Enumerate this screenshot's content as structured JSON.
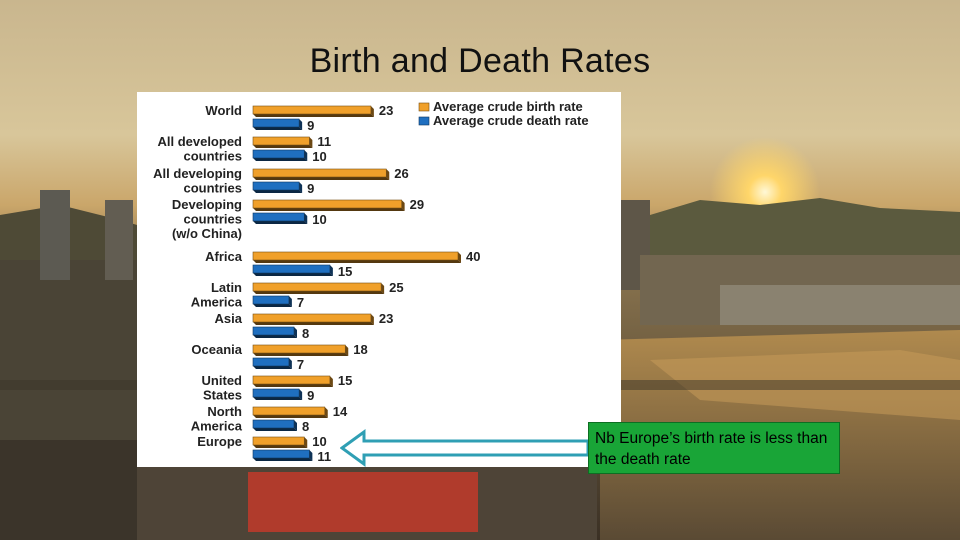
{
  "slide": {
    "title": "Birth and Death Rates"
  },
  "note": {
    "text": "Nb Europe’s birth rate is less than the death rate"
  },
  "colors": {
    "birth": "#f0a02a",
    "death": "#1f6fc0",
    "note_bg": "#19a537",
    "arrow": "#2f9fb4"
  },
  "chart_data": {
    "type": "bar",
    "orientation": "horizontal",
    "categories": [
      "World",
      "All developed countries",
      "All developing countries",
      "Developing countries (w/o China)",
      "Africa",
      "Latin America",
      "Asia",
      "Oceania",
      "United States",
      "North America",
      "Europe"
    ],
    "category_lines": [
      [
        "World"
      ],
      [
        "All developed",
        "countries"
      ],
      [
        "All developing",
        "countries"
      ],
      [
        "Developing",
        "countries",
        "(w/o China)"
      ],
      [
        "Africa"
      ],
      [
        "Latin",
        "America"
      ],
      [
        "Asia"
      ],
      [
        "Oceania"
      ],
      [
        "United",
        "States"
      ],
      [
        "North",
        "America"
      ],
      [
        "Europe"
      ]
    ],
    "series": [
      {
        "name": "Average crude birth rate",
        "values": [
          23,
          11,
          26,
          29,
          40,
          25,
          23,
          18,
          15,
          14,
          10
        ]
      },
      {
        "name": "Average crude death rate",
        "values": [
          9,
          10,
          9,
          10,
          15,
          7,
          8,
          7,
          9,
          8,
          11
        ]
      }
    ],
    "xlim": [
      0,
      45
    ],
    "legend_position": "top-right",
    "grid": false
  }
}
